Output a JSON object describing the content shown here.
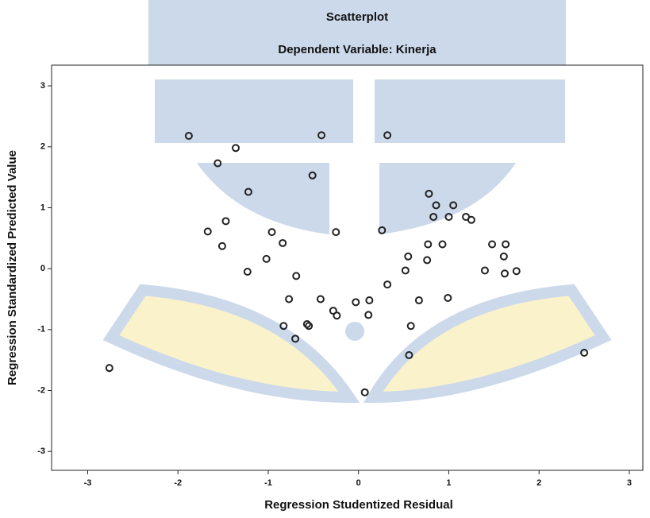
{
  "chart_data": {
    "type": "scatter",
    "title": "Scatterplot",
    "subtitle": "Dependent Variable: Kinerja",
    "x_label": "Regression Studentized Residual",
    "y_label": "Regression Standardized Predicted Value",
    "xlim": [
      -3.4,
      3.15
    ],
    "ylim": [
      -3.31,
      3.34
    ],
    "xticks": [
      -3,
      -2,
      -1,
      0,
      1,
      2,
      3
    ],
    "yticks": [
      -3,
      -2,
      -1,
      0,
      1,
      2,
      3
    ],
    "color": "#222222",
    "x": [
      -2.76,
      -1.88,
      -1.36,
      -1.56,
      -1.22,
      -0.41,
      -0.51,
      0.32,
      -1.47,
      -1.67,
      -1.51,
      -0.96,
      -0.84,
      -0.25,
      0.26,
      -1.23,
      -1.02,
      -0.69,
      -0.77,
      -0.42,
      -0.83,
      -0.57,
      -0.55,
      -0.7,
      -0.28,
      -0.24,
      -0.03,
      0.12,
      0.11,
      0.07,
      0.32,
      0.56,
      0.58,
      0.52,
      0.55,
      0.67,
      0.76,
      0.77,
      0.78,
      0.86,
      0.83,
      0.93,
      1.0,
      1.05,
      1.19,
      1.25,
      0.99,
      1.48,
      1.4,
      1.63,
      1.61,
      1.62,
      1.75,
      2.5
    ],
    "y": [
      -1.63,
      2.18,
      1.98,
      1.73,
      1.26,
      2.19,
      1.53,
      2.19,
      0.78,
      0.61,
      0.37,
      0.6,
      0.42,
      0.6,
      0.63,
      -0.05,
      0.16,
      -0.12,
      -0.5,
      -0.5,
      -0.94,
      -0.91,
      -0.94,
      -1.15,
      -0.69,
      -0.77,
      -0.55,
      -0.52,
      -0.76,
      -2.03,
      -0.26,
      -1.42,
      -0.94,
      -0.03,
      0.2,
      -0.52,
      0.14,
      0.4,
      1.23,
      1.04,
      0.85,
      0.4,
      0.85,
      1.04,
      0.85,
      0.8,
      -0.48,
      0.4,
      -0.03,
      0.4,
      0.2,
      -0.08,
      -0.04,
      -1.38
    ]
  }
}
